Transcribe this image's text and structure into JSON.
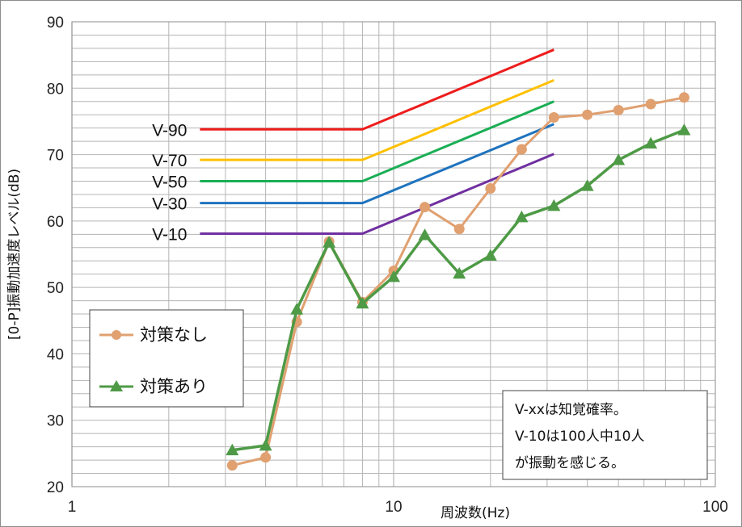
{
  "chart_data": {
    "type": "line",
    "x_scale": "log",
    "xlim": [
      1,
      100
    ],
    "ylim": [
      20,
      90
    ],
    "x_ticks": [
      "1",
      "10",
      "100"
    ],
    "y_ticks": [
      "20",
      "30",
      "40",
      "50",
      "60",
      "70",
      "80",
      "90"
    ],
    "xlabel": "周波数(Hz)",
    "ylabel": "[0-P]振動加速度レベル(dB)",
    "grid": true,
    "reference_lines": [
      {
        "name": "V-90",
        "color": "#ee1c1c",
        "x": [
          2.5,
          8,
          31.5
        ],
        "y": [
          73.8,
          73.8,
          85.8
        ]
      },
      {
        "name": "V-70",
        "color": "#ffc000",
        "x": [
          2.5,
          8,
          31.5
        ],
        "y": [
          69.2,
          69.2,
          81.2
        ]
      },
      {
        "name": "V-50",
        "color": "#1aae55",
        "x": [
          2.5,
          8,
          31.5
        ],
        "y": [
          66.0,
          66.0,
          78.0
        ]
      },
      {
        "name": "V-30",
        "color": "#1e73be",
        "x": [
          2.5,
          8,
          31.5
        ],
        "y": [
          62.7,
          62.7,
          74.6
        ]
      },
      {
        "name": "V-10",
        "color": "#7030a0",
        "x": [
          2.5,
          8,
          31.5
        ],
        "y": [
          58.1,
          58.1,
          70.1
        ]
      }
    ],
    "series": [
      {
        "name": "対策なし",
        "color": "#e0a070",
        "marker": "circle",
        "x": [
          3.15,
          4,
          5,
          6.3,
          8,
          10,
          12.5,
          16,
          20,
          25,
          31.5,
          40,
          50,
          63,
          80
        ],
        "y": [
          23.2,
          24.4,
          44.8,
          56.9,
          47.8,
          52.5,
          62.1,
          58.8,
          64.9,
          70.8,
          75.6,
          76.0,
          76.7,
          77.6,
          78.6
        ]
      },
      {
        "name": "対策あり",
        "color": "#4e9a46",
        "marker": "triangle",
        "x": [
          3.15,
          4,
          5,
          6.3,
          8,
          10,
          12.5,
          16,
          20,
          25,
          31.5,
          40,
          50,
          63,
          80
        ],
        "y": [
          25.5,
          26.2,
          46.7,
          56.8,
          47.6,
          51.6,
          57.9,
          52.1,
          54.8,
          60.6,
          62.3,
          65.3,
          69.2,
          71.7,
          73.7
        ]
      }
    ],
    "legend_position": "left-middle",
    "note_lines": [
      "V-xxは知覚確率。",
      "V-10は100人中10人",
      "が振動を感じる。"
    ]
  }
}
